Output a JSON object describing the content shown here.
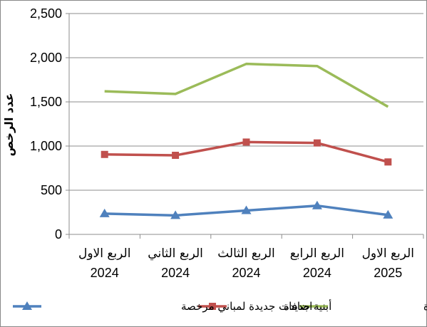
{
  "chart_data": {
    "type": "line",
    "title": "",
    "xlabel": "",
    "ylabel": "عدد الرخص",
    "ylim": [
      0,
      2500
    ],
    "yticks": [
      "0",
      "500",
      "1,000",
      "1,500",
      "2,000",
      "2,500"
    ],
    "ytick_values": [
      0,
      500,
      1000,
      1500,
      2000,
      2500
    ],
    "categories": [
      {
        "quarter": "الربع الاول",
        "year": "2024"
      },
      {
        "quarter": "الربع الثاني",
        "year": "2024"
      },
      {
        "quarter": "الربع الثالث",
        "year": "2024"
      },
      {
        "quarter": "الربع الرابع",
        "year": "2024"
      },
      {
        "quarter": "الربع الاول",
        "year": "2025"
      }
    ],
    "series": [
      {
        "name": "الرخص الصادرة",
        "color": "#9BBB59",
        "marker": "none",
        "values": [
          1620,
          1590,
          1930,
          1905,
          1445
        ]
      },
      {
        "name": "أبنية جديدة",
        "color": "#C0504D",
        "marker": "square",
        "values": [
          905,
          895,
          1045,
          1035,
          820
        ]
      },
      {
        "name": "اضافات جديدة لمباني مرخصة",
        "color": "#4F81BD",
        "marker": "triangle",
        "values": [
          235,
          215,
          270,
          325,
          220
        ]
      }
    ],
    "grid": "horizontal",
    "legend_position": "bottom"
  }
}
